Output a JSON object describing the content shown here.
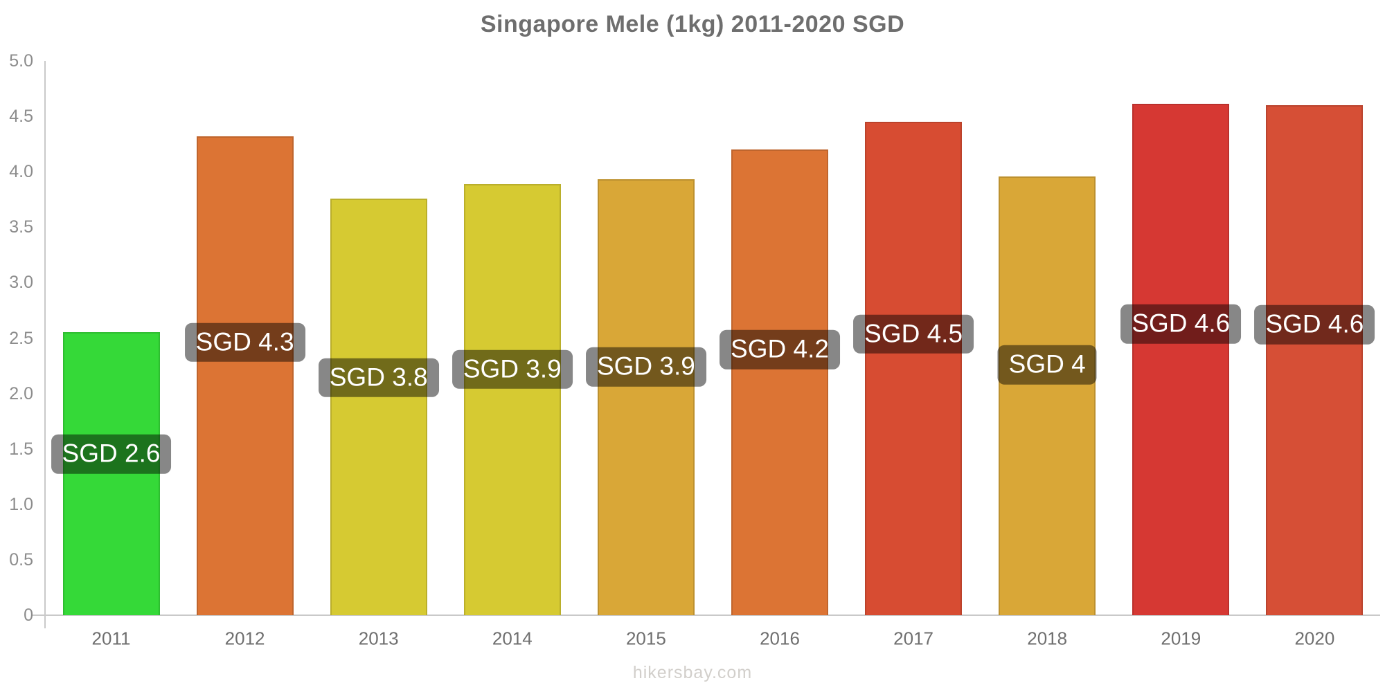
{
  "title": "Singapore Mele (1kg) 2011-2020 SGD",
  "watermark": "hikersbay.com",
  "chart_data": {
    "type": "bar",
    "title": "Singapore Mele (1kg) 2011-2020 SGD",
    "xlabel": "",
    "ylabel": "",
    "currency": "SGD",
    "categories": [
      "2011",
      "2012",
      "2013",
      "2014",
      "2015",
      "2016",
      "2017",
      "2018",
      "2019",
      "2020"
    ],
    "values": [
      2.55,
      4.32,
      3.76,
      3.89,
      3.93,
      4.2,
      4.45,
      3.96,
      4.61,
      4.6
    ],
    "bar_labels": [
      "SGD 2.6",
      "SGD 4.3",
      "SGD 3.8",
      "SGD 3.9",
      "SGD 3.9",
      "SGD 4.2",
      "SGD 4.5",
      "SGD 4",
      "SGD 4.6",
      "SGD 4.6"
    ],
    "bar_colors": [
      "#35d938",
      "#dc7434",
      "#d6ca32",
      "#d6ca32",
      "#d9a737",
      "#dc7434",
      "#d74c32",
      "#d9a737",
      "#d63833",
      "#d64f36"
    ],
    "label_bg": "rgba(0,0,0,0.47)",
    "label_text_color": "#ffffff",
    "ylim": [
      0,
      5
    ],
    "yticks": [
      "5.0",
      "4.5",
      "4.0",
      "3.5",
      "3.0",
      "2.5",
      "2.0",
      "1.5",
      "1.0",
      "0.5",
      "0"
    ],
    "grid": false,
    "legend": false
  }
}
